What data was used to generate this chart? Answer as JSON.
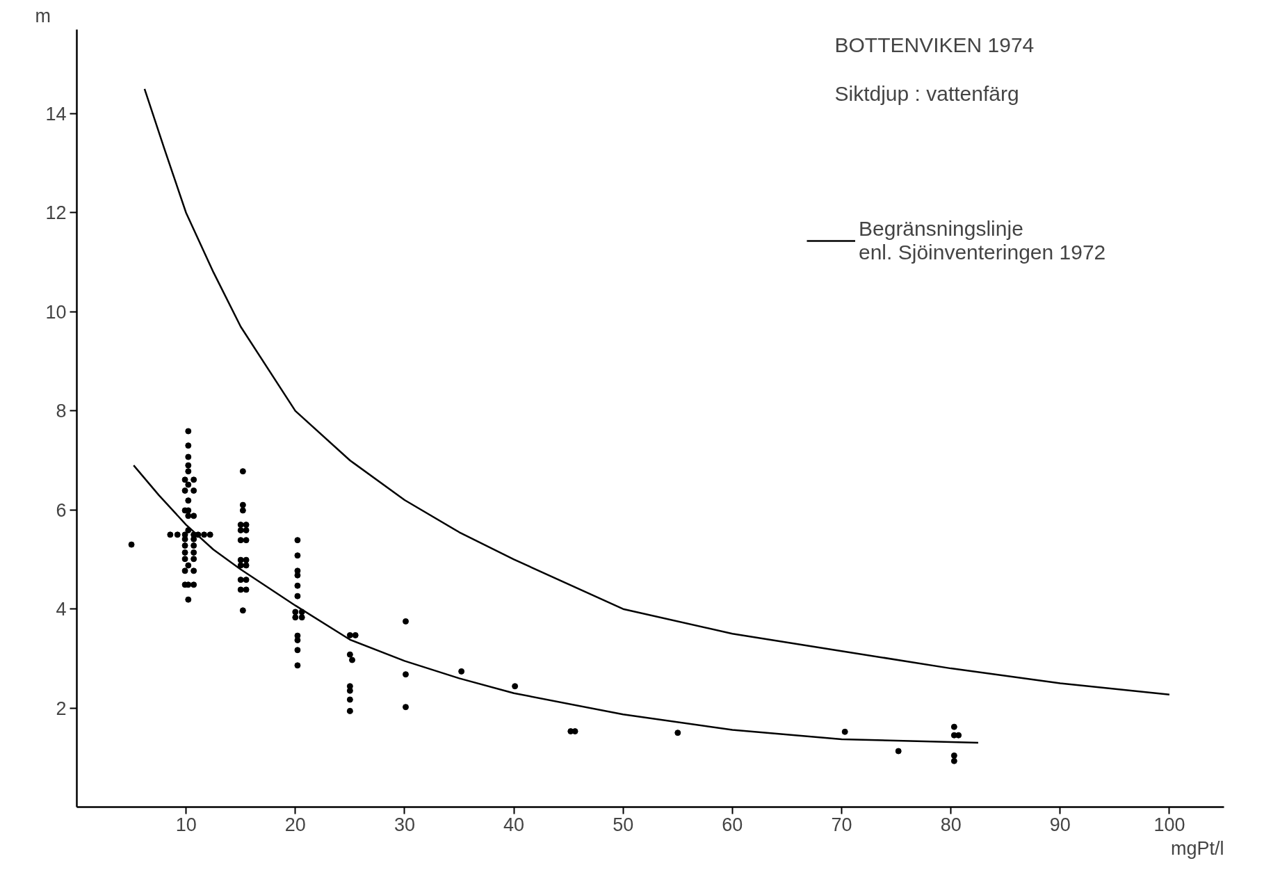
{
  "chart_data": {
    "type": "scatter",
    "title": "BOTTENVIKEN   1974",
    "subtitle": "Siktdjup : vattenfärg",
    "xlabel": "mgPt/l",
    "ylabel": "m",
    "xlim": [
      0,
      105
    ],
    "ylim": [
      0,
      15.7
    ],
    "xticks": [
      10,
      20,
      30,
      40,
      50,
      60,
      70,
      80,
      90,
      100
    ],
    "yticks": [
      2,
      4,
      6,
      8,
      10,
      12,
      14
    ],
    "grid": false,
    "legend": "top right",
    "series": [
      {
        "marker": "circle",
        "color": "#000000",
        "x": [
          5,
          10.2,
          10.2,
          10.2,
          10.2,
          10.2,
          9.9,
          10.7,
          10.2,
          9.9,
          10.7,
          10.2,
          9.9,
          10.2,
          10.2,
          10.7,
          10.2,
          8.55,
          9.21,
          9.9,
          10.7,
          11.1,
          11.65,
          12.2,
          9.9,
          10.7,
          9.9,
          10.7,
          9.9,
          10.7,
          9.9,
          10.7,
          10.2,
          9.9,
          10.7,
          9.9,
          10.7,
          10.2,
          10.2,
          15.2,
          15.2,
          15.2,
          15.0,
          15.5,
          15.0,
          15.5,
          15.0,
          15.5,
          15.0,
          15.5,
          15.0,
          15.5,
          15.0,
          15.5,
          15.0,
          15.5,
          15.2,
          20.2,
          20.2,
          20.2,
          20.2,
          20.2,
          20.2,
          20.0,
          20.6,
          20.0,
          20.6,
          20.2,
          20.2,
          20.2,
          20.2,
          25.0,
          25.5,
          25.0,
          25.2,
          25.0,
          25.0,
          25.0,
          25.0,
          30.1,
          30.1,
          30.1,
          35.2,
          40.1,
          45.2,
          45.6,
          55.0,
          70.3,
          75.2,
          80.3,
          80.3,
          80.7,
          80.3,
          80.3
        ],
        "values": [
          5.3,
          7.59,
          7.3,
          7.07,
          6.9,
          6.78,
          6.61,
          6.61,
          6.51,
          6.39,
          6.39,
          6.19,
          5.99,
          5.99,
          5.88,
          5.88,
          5.59,
          5.5,
          5.5,
          5.5,
          5.5,
          5.5,
          5.5,
          5.5,
          5.41,
          5.41,
          5.28,
          5.28,
          5.14,
          5.14,
          5.01,
          5.01,
          4.88,
          4.77,
          4.77,
          4.49,
          4.49,
          4.49,
          4.19,
          6.78,
          6.1,
          5.99,
          5.7,
          5.7,
          5.59,
          5.59,
          5.39,
          5.39,
          4.99,
          4.99,
          4.88,
          4.88,
          4.59,
          4.59,
          4.39,
          4.39,
          3.97,
          5.39,
          5.08,
          4.77,
          4.68,
          4.47,
          4.26,
          3.94,
          3.94,
          3.83,
          3.83,
          3.46,
          3.37,
          3.17,
          2.86,
          3.47,
          3.47,
          3.08,
          2.97,
          2.44,
          2.35,
          2.17,
          1.94,
          3.75,
          2.68,
          2.02,
          2.74,
          2.44,
          1.53,
          1.53,
          1.5,
          1.52,
          1.13,
          1.62,
          1.45,
          1.45,
          1.04,
          0.93
        ]
      },
      {
        "type": "line",
        "line_style": "solid",
        "name": "Begränsningslinje\nenl. Sjöinventeringen 1972",
        "color": "#000000",
        "x": [
          6.2,
          8,
          10,
          12.5,
          15,
          20,
          25,
          30,
          35,
          40,
          50,
          60,
          70,
          80,
          90,
          100
        ],
        "values": [
          14.5,
          13.3,
          12.0,
          10.8,
          9.7,
          8.0,
          7.0,
          6.2,
          5.55,
          5.0,
          4.0,
          3.5,
          3.15,
          2.8,
          2.5,
          2.27
        ]
      },
      {
        "type": "line",
        "line_style": "solid",
        "color": "#000000",
        "x": [
          5.2,
          7.5,
          10,
          12.5,
          15,
          20,
          25,
          30,
          35,
          40,
          50,
          60,
          70,
          82.5
        ],
        "values": [
          6.9,
          6.3,
          5.7,
          5.2,
          4.8,
          4.07,
          3.38,
          2.95,
          2.6,
          2.3,
          1.87,
          1.56,
          1.37,
          1.3
        ]
      }
    ]
  }
}
